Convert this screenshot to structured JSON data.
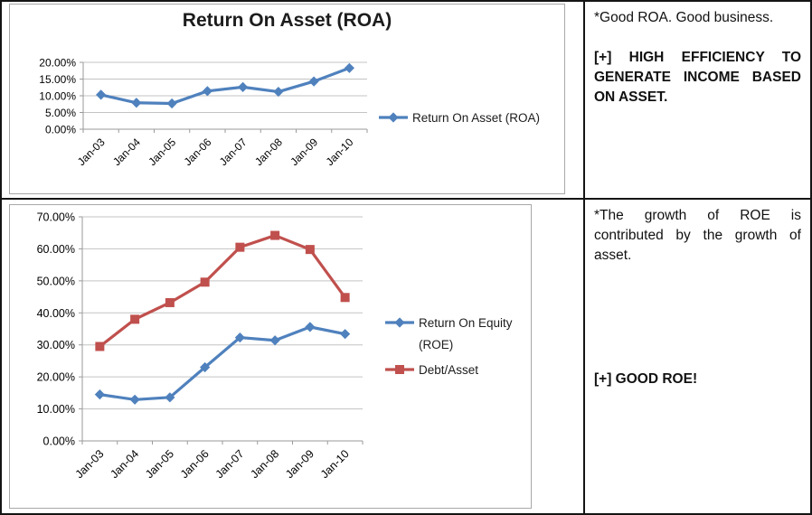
{
  "colors": {
    "series_blue": "#4F81BD",
    "series_red": "#C0504D",
    "gridline": "#c3c3c3",
    "axis": "#9a9a9a",
    "tick_label": "#000000",
    "table_border": "#151515",
    "chart_frame_border": "#a8a8a8"
  },
  "notes": {
    "roa": {
      "observation": "*Good ROA. Good business.",
      "conclusion": "[+] HIGH EFFICIENCY TO GENERATE INCOME BASED ON ASSET."
    },
    "roe": {
      "observation": "*The growth of ROE is contributed by the growth of asset.",
      "conclusion": "[+] GOOD ROE!"
    }
  },
  "chart_data": [
    {
      "type": "line",
      "title": "Return On Asset (ROA)",
      "xlabel": "",
      "ylabel": "",
      "categories": [
        "Jan-03",
        "Jan-04",
        "Jan-05",
        "Jan-06",
        "Jan-07",
        "Jan-08",
        "Jan-09",
        "Jan-10"
      ],
      "series": [
        {
          "name": "Return On Asset (ROA)",
          "legend_lines": [
            "Return On Asset (ROA)"
          ],
          "color": "#4F81BD",
          "marker": "diamond",
          "values": [
            10.3,
            7.9,
            7.7,
            11.4,
            12.6,
            11.2,
            14.3,
            18.3
          ]
        }
      ],
      "ylim": [
        0,
        20
      ],
      "ytick_step": 5,
      "ytick_format": "0.00%",
      "grid": true,
      "legend_position": "right"
    },
    {
      "type": "line",
      "title": "",
      "xlabel": "",
      "ylabel": "",
      "categories": [
        "Jan-03",
        "Jan-04",
        "Jan-05",
        "Jan-06",
        "Jan-07",
        "Jan-08",
        "Jan-09",
        "Jan-10"
      ],
      "series": [
        {
          "name": "Return On Equity (ROE)",
          "legend_lines": [
            "Return On Equity",
            "(ROE)"
          ],
          "color": "#4F81BD",
          "marker": "diamond",
          "values": [
            14.5,
            12.9,
            13.6,
            23.0,
            32.3,
            31.4,
            35.6,
            33.4
          ]
        },
        {
          "name": "Debt/Asset",
          "legend_lines": [
            "Debt/Asset"
          ],
          "color": "#C0504D",
          "marker": "square",
          "values": [
            29.5,
            38.0,
            43.2,
            49.6,
            60.5,
            64.2,
            59.8,
            44.8
          ]
        }
      ],
      "ylim": [
        0,
        70
      ],
      "ytick_step": 10,
      "ytick_format": "0.00%",
      "grid": true,
      "legend_position": "right"
    }
  ]
}
